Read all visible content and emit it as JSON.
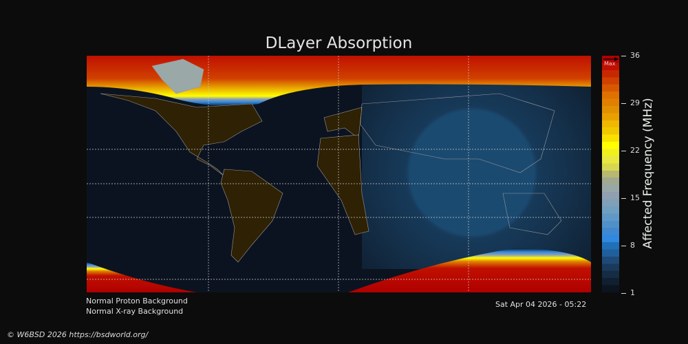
{
  "title": "DLayer Absorption",
  "colorbar": {
    "label": "Affected Frequency (MHz)",
    "ticks": [
      "36",
      "29",
      "22",
      "15",
      "8",
      "1"
    ],
    "range": [
      1,
      36
    ],
    "max_label": "Max",
    "colors": [
      "#0c1420",
      "#102030",
      "#152c44",
      "#1a3a5c",
      "#1e4a78",
      "#205f9c",
      "#2070b8",
      "#3088e0",
      "#4088d0",
      "#5090c8",
      "#6098c8",
      "#70a0c0",
      "#80a0b8",
      "#90a0b0",
      "#98a8a8",
      "#a0a890",
      "#b8b870",
      "#d8d850",
      "#e8e840",
      "#f0f020",
      "#ffff00",
      "#f8e000",
      "#f0c800",
      "#f0b800",
      "#e8a000",
      "#e09000",
      "#e08000",
      "#e07000",
      "#d85800",
      "#d04000",
      "#c82800",
      "#c01000",
      "#b00000"
    ]
  },
  "status": {
    "proton": "Normal Proton Background",
    "xray": "Normal X-ray Background",
    "timestamp": "Sat Apr 04 2026 - 05:22"
  },
  "footer": "© W6BSD 2026 https://bsdworld.org/"
}
